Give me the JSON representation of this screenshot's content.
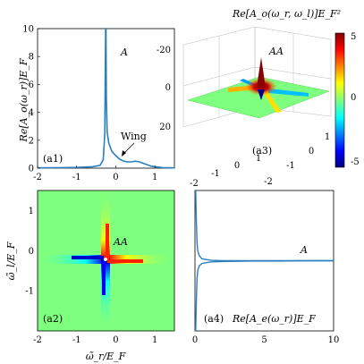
{
  "colors": {
    "curve": "#2a7fbf",
    "cmap": [
      "#00007f",
      "#0000ff",
      "#00ffff",
      "#7fff7f",
      "#ffff00",
      "#ff0000",
      "#7f0000"
    ],
    "flat": "#7fff7f"
  },
  "chart_data": [
    {
      "id": "a1",
      "type": "line",
      "panel_label": "(a1)",
      "corner_label": "A",
      "ylabel": "Re[A_o(ω_r)]E_F",
      "annotation": "Wing",
      "xlim": [
        -2,
        1.5
      ],
      "ylim": [
        0,
        10
      ],
      "xticks": [
        "-2",
        "-1",
        "0",
        "1"
      ],
      "yticks": [
        "0",
        "2",
        "4",
        "6",
        "8",
        "10"
      ],
      "series": [
        {
          "x": [
            -2.0,
            -1.5,
            -1.0,
            -0.6,
            -0.4,
            -0.32,
            -0.28,
            -0.26,
            -0.25,
            -0.24,
            -0.22,
            -0.18,
            -0.1,
            0.0,
            0.1,
            0.2,
            0.3,
            0.4,
            0.5,
            0.6,
            0.7,
            0.8,
            0.9,
            1.0,
            1.2,
            1.5
          ],
          "y": [
            0.02,
            0.03,
            0.05,
            0.1,
            0.2,
            0.6,
            2.5,
            10,
            10,
            5.0,
            2.6,
            1.8,
            1.2,
            0.9,
            0.65,
            0.5,
            0.45,
            0.45,
            0.5,
            0.45,
            0.35,
            0.25,
            0.15,
            0.1,
            0.04,
            0.02
          ]
        }
      ]
    },
    {
      "id": "a2",
      "type": "heatmap",
      "panel_label": "(a2)",
      "corner_label": "AA",
      "xlabel": "ω̃_r/E_F",
      "ylabel": "ω̃_l/E_F",
      "xlim": [
        -2,
        1.5
      ],
      "ylim": [
        -2,
        1.5
      ],
      "xticks": [
        "-2",
        "-1",
        "0",
        "1"
      ],
      "yticks": [
        "-1",
        "0",
        "1"
      ],
      "singular_point": [
        -0.25,
        -0.25
      ],
      "zlim": [
        -5,
        5
      ]
    },
    {
      "id": "a3",
      "type": "surface3d",
      "panel_label": "(a3)",
      "corner_label": "AA",
      "title": "Re[A_o(ω_r, ω_l)]E_F²",
      "zticks": [
        "-20",
        "0",
        "20"
      ],
      "xticks": [
        "-2",
        "-1",
        "0",
        "1"
      ],
      "yticks": [
        "-2",
        "-1",
        "0",
        "1"
      ],
      "colorbar_ticks": [
        "5",
        "0",
        "-5"
      ],
      "zlim": [
        -20,
        20
      ]
    },
    {
      "id": "a4",
      "type": "line",
      "panel_label": "(a4)",
      "corner_label": "A",
      "ylabel": "Re[A_e(ω_r)]E_F",
      "xlim": [
        0,
        10
      ],
      "ylim": [
        -2,
        1.5
      ],
      "xticks": [
        "0",
        "5",
        "10"
      ],
      "series": [
        {
          "x": [
            0.05,
            0.1,
            0.15,
            0.2,
            0.3,
            0.5,
            0.8,
            1.2,
            2,
            4,
            6,
            8,
            10
          ],
          "y": [
            1.5,
            0.7,
            0.2,
            0.0,
            -0.12,
            -0.2,
            -0.22,
            -0.24,
            -0.25,
            -0.25,
            -0.25,
            -0.25,
            -0.25
          ]
        },
        {
          "x": [
            0.05,
            0.1,
            0.15,
            0.2,
            0.3,
            0.5,
            0.8,
            1.2,
            2,
            4,
            6,
            8,
            10
          ],
          "y": [
            -2.0,
            -1.2,
            -0.7,
            -0.5,
            -0.38,
            -0.32,
            -0.3,
            -0.28,
            -0.27,
            -0.26,
            -0.26,
            -0.25,
            -0.25
          ]
        }
      ]
    }
  ]
}
